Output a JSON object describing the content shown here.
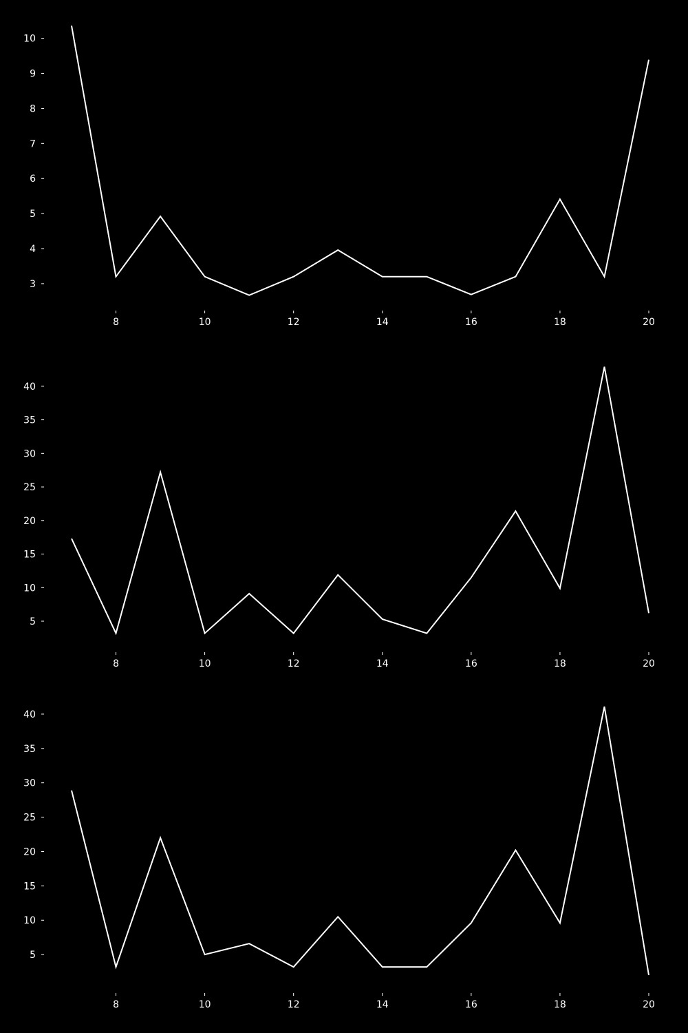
{
  "figure": {
    "background": "#000000",
    "foreground": "#ffffff"
  },
  "chart_data": [
    {
      "type": "line",
      "title": "",
      "xlabel": "",
      "ylabel": "",
      "grid": false,
      "xlim": [
        7,
        20
      ],
      "ylim": [
        2.35,
        10.7
      ],
      "xticks": [
        8,
        10,
        12,
        14,
        16,
        18,
        20
      ],
      "yticks": [
        3,
        4,
        5,
        6,
        7,
        8,
        9,
        10
      ],
      "series": [
        {
          "color": "#ffffff",
          "x": [
            7,
            8,
            9,
            10,
            11,
            12,
            13,
            14,
            15,
            16,
            17,
            18,
            19,
            20
          ],
          "y": [
            10.36,
            3.2,
            4.92,
            3.2,
            2.67,
            3.2,
            3.96,
            3.2,
            3.2,
            2.69,
            3.2,
            5.41,
            3.2,
            9.39
          ]
        }
      ]
    },
    {
      "type": "line",
      "title": "",
      "xlabel": "",
      "ylabel": "",
      "grid": false,
      "xlim": [
        7,
        20
      ],
      "ylim": [
        1.0,
        44.5
      ],
      "xticks": [
        8,
        10,
        12,
        14,
        16,
        18,
        20
      ],
      "yticks": [
        5,
        10,
        15,
        20,
        25,
        30,
        35,
        40
      ],
      "series": [
        {
          "color": "#ffffff",
          "x": [
            7,
            8,
            9,
            10,
            11,
            12,
            13,
            14,
            15,
            16,
            17,
            18,
            19,
            20
          ],
          "y": [
            17.3,
            3.2,
            27.2,
            3.2,
            9.1,
            3.2,
            11.9,
            5.3,
            3.2,
            11.5,
            21.4,
            9.9,
            42.9,
            6.2
          ]
        }
      ]
    },
    {
      "type": "line",
      "title": "",
      "xlabel": "",
      "ylabel": "",
      "grid": false,
      "xlim": [
        7,
        20
      ],
      "ylim": [
        0.0,
        42.5
      ],
      "xticks": [
        8,
        10,
        12,
        14,
        16,
        18,
        20
      ],
      "yticks": [
        5,
        10,
        15,
        20,
        25,
        30,
        35,
        40
      ],
      "series": [
        {
          "color": "#ffffff",
          "x": [
            7,
            8,
            9,
            10,
            11,
            12,
            13,
            14,
            15,
            16,
            17,
            18,
            19,
            20
          ],
          "y": [
            28.9,
            3.2,
            22.0,
            5.0,
            6.6,
            3.2,
            10.5,
            3.2,
            3.2,
            9.6,
            20.2,
            9.6,
            41.1,
            2.0
          ]
        }
      ]
    }
  ]
}
